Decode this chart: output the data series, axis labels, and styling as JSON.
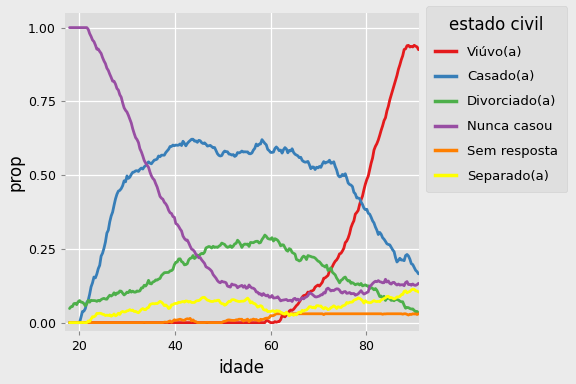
{
  "title": "estado civil",
  "xlabel": "idade",
  "ylabel": "prop",
  "xlim": [
    17,
    91
  ],
  "ylim": [
    -0.03,
    1.05
  ],
  "xticks": [
    20,
    40,
    60,
    80
  ],
  "yticks": [
    0.0,
    0.25,
    0.5,
    0.75,
    1.0
  ],
  "background_color": "#EBEBEB",
  "plot_bg_color": "#DCDCDC",
  "legend_background": "#DCDCDC",
  "grid_color": "white",
  "series": [
    {
      "label": "Viúvo(a)",
      "color": "#E41A1C"
    },
    {
      "label": "Casado(a)",
      "color": "#377EB8"
    },
    {
      "label": "Divorciado(a)",
      "color": "#4DAF4A"
    },
    {
      "label": "Nunca casou",
      "color": "#984EA3"
    },
    {
      "label": "Sem resposta",
      "color": "#FF7F00"
    },
    {
      "label": "Separado(a)",
      "color": "#FFFF00"
    }
  ],
  "figsize": [
    5.76,
    3.84
  ],
  "dpi": 100
}
